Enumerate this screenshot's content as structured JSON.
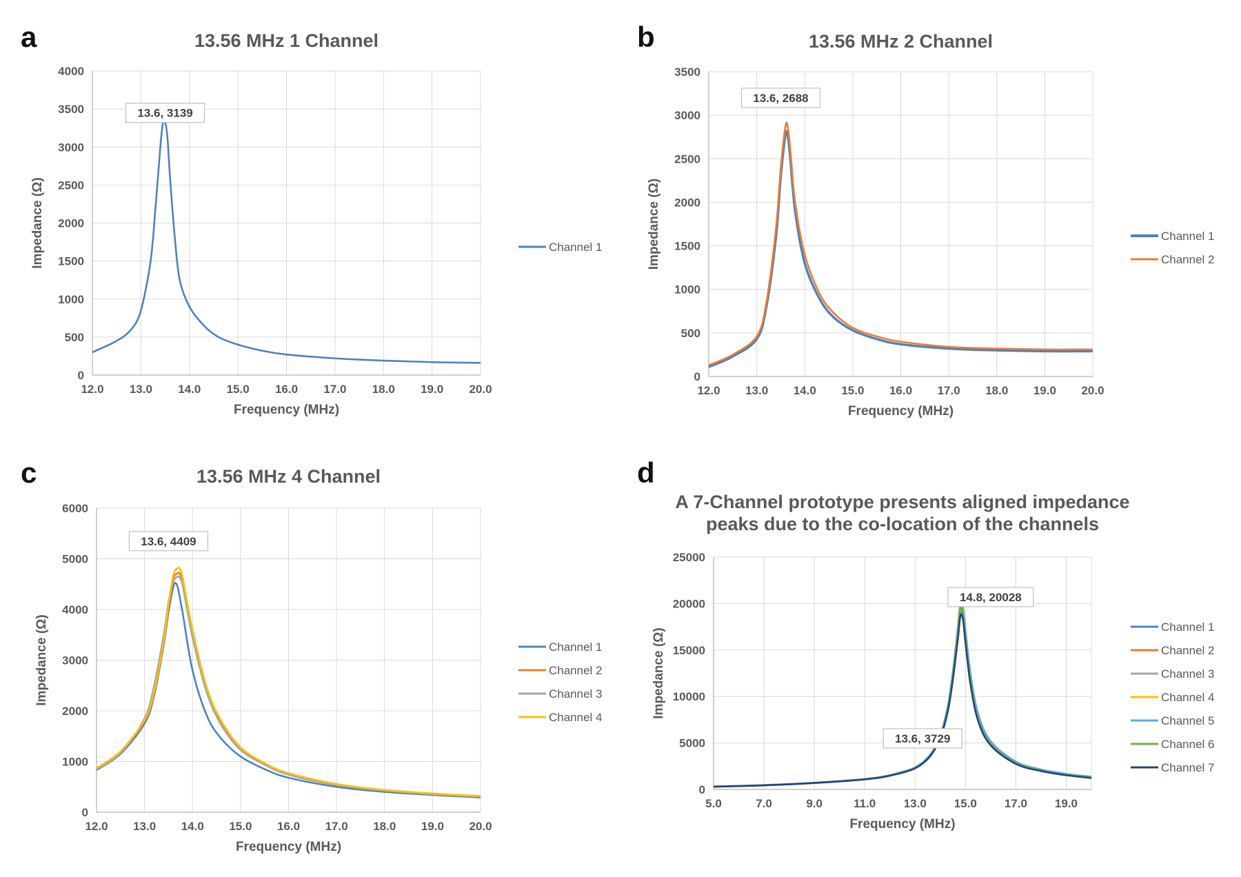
{
  "figure": {
    "panel_letters": [
      "a",
      "b",
      "c",
      "d"
    ]
  },
  "colors": {
    "channel_1": "#4f81bd",
    "channel_2": "#ed7d31",
    "channel_3": "#a5a5a5",
    "channel_4": "#ffc000",
    "channel_5": "#5fa8d3",
    "channel_6": "#70ad47",
    "channel_7": "#264478",
    "grid": "#d9d9d9",
    "text": "#595959"
  },
  "chart_data": [
    {
      "type": "line",
      "panel": "a",
      "title": [
        "13.56 MHz 1 Channel"
      ],
      "xlabel": "Frequency (MHz)",
      "ylabel": "Impedance (Ω)",
      "xlim": [
        12,
        20
      ],
      "ylim": [
        0,
        4000
      ],
      "xticks": [
        12,
        13,
        14,
        15,
        16,
        17,
        18,
        19,
        20
      ],
      "xtick_labels": [
        "12.0",
        "13.0",
        "14.0",
        "15.0",
        "16.0",
        "17.0",
        "18.0",
        "19.0",
        "20.0"
      ],
      "yticks": [
        0,
        500,
        1000,
        1500,
        2000,
        2500,
        3000,
        3500,
        4000
      ],
      "ytick_labels": [
        "0",
        "500",
        "1000",
        "1500",
        "2000",
        "2500",
        "3000",
        "3500",
        "4000"
      ],
      "grid": true,
      "legend_position": "right",
      "series": [
        {
          "name": "Channel 1",
          "color_key": "channel_1",
          "x": [
            12.0,
            12.5,
            12.8,
            13.0,
            13.2,
            13.3,
            13.4,
            13.45,
            13.5,
            13.55,
            13.6,
            13.7,
            13.8,
            14.0,
            14.3,
            14.6,
            15.0,
            15.5,
            16.0,
            17.0,
            18.0,
            19.0,
            20.0
          ],
          "y": [
            300,
            450,
            600,
            850,
            1500,
            2200,
            3000,
            3300,
            3330,
            3100,
            2600,
            1800,
            1250,
            900,
            650,
            500,
            400,
            320,
            270,
            220,
            190,
            170,
            160
          ]
        }
      ],
      "annotations": [
        {
          "text": "13.6, 3139",
          "x": 13.5,
          "y": 3450
        }
      ]
    },
    {
      "type": "line",
      "panel": "b",
      "title": [
        "13.56 MHz 2 Channel"
      ],
      "xlabel": "Frequency (MHz)",
      "ylabel": "Impedance (Ω)",
      "xlim": [
        12,
        20
      ],
      "ylim": [
        0,
        3500
      ],
      "xticks": [
        12,
        13,
        14,
        15,
        16,
        17,
        18,
        19,
        20
      ],
      "xtick_labels": [
        "12.0",
        "13.0",
        "14.0",
        "15.0",
        "16.0",
        "17.0",
        "18.0",
        "19.0",
        "20.0"
      ],
      "yticks": [
        0,
        500,
        1000,
        1500,
        2000,
        2500,
        3000,
        3500
      ],
      "ytick_labels": [
        "0",
        "500",
        "1000",
        "1500",
        "2000",
        "2500",
        "3000",
        "3500"
      ],
      "grid": true,
      "legend_position": "right",
      "series": [
        {
          "name": "Channel 1",
          "color_key": "channel_1",
          "x": [
            12.0,
            12.5,
            13.0,
            13.2,
            13.4,
            13.5,
            13.6,
            13.65,
            13.7,
            13.8,
            14.0,
            14.3,
            14.6,
            15.0,
            15.5,
            16.0,
            17.0,
            18.0,
            19.0,
            20.0
          ],
          "y": [
            110,
            230,
            430,
            800,
            1600,
            2300,
            2780,
            2750,
            2500,
            1900,
            1300,
            900,
            680,
            530,
            430,
            370,
            320,
            300,
            290,
            290
          ]
        },
        {
          "name": "Channel 2",
          "color_key": "channel_2",
          "x": [
            12.0,
            12.5,
            13.0,
            13.2,
            13.4,
            13.5,
            13.6,
            13.65,
            13.7,
            13.8,
            14.0,
            14.3,
            14.6,
            15.0,
            15.5,
            16.0,
            17.0,
            18.0,
            19.0,
            20.0
          ],
          "y": [
            130,
            250,
            460,
            850,
            1700,
            2400,
            2880,
            2850,
            2600,
            2000,
            1400,
            960,
            730,
            560,
            460,
            400,
            340,
            320,
            310,
            310
          ]
        }
      ],
      "annotations": [
        {
          "text": "13.6, 2688",
          "x": 13.5,
          "y": 3200
        }
      ]
    },
    {
      "type": "line",
      "panel": "c",
      "title": [
        "13.56 MHz 4 Channel"
      ],
      "xlabel": "Frequency (MHz)",
      "ylabel": "Impedance (Ω)",
      "xlim": [
        12,
        20
      ],
      "ylim": [
        0,
        6000
      ],
      "xticks": [
        12,
        13,
        14,
        15,
        16,
        17,
        18,
        19,
        20
      ],
      "xtick_labels": [
        "12.0",
        "13.0",
        "14.0",
        "15.0",
        "16.0",
        "17.0",
        "18.0",
        "19.0",
        "20.0"
      ],
      "yticks": [
        0,
        1000,
        2000,
        3000,
        4000,
        5000,
        6000
      ],
      "ytick_labels": [
        "0",
        "1000",
        "2000",
        "3000",
        "4000",
        "5000",
        "6000"
      ],
      "grid": true,
      "legend_position": "right",
      "series": [
        {
          "name": "Channel 1",
          "color_key": "channel_1",
          "x": [
            12.0,
            12.5,
            13.0,
            13.2,
            13.4,
            13.5,
            13.6,
            13.65,
            13.7,
            13.8,
            14.0,
            14.3,
            14.6,
            15.0,
            15.5,
            16.0,
            17.0,
            18.0,
            19.0,
            20.0
          ],
          "y": [
            830,
            1150,
            1750,
            2300,
            3300,
            3950,
            4450,
            4520,
            4400,
            3900,
            2800,
            1900,
            1450,
            1100,
            850,
            680,
            500,
            400,
            340,
            290
          ]
        },
        {
          "name": "Channel 2",
          "color_key": "channel_2",
          "x": [
            12.0,
            12.5,
            13.0,
            13.2,
            13.4,
            13.5,
            13.6,
            13.7,
            13.75,
            13.8,
            14.0,
            14.3,
            14.6,
            15.0,
            15.5,
            16.0,
            17.0,
            18.0,
            19.0,
            20.0
          ],
          "y": [
            850,
            1180,
            1800,
            2350,
            3350,
            4050,
            4600,
            4720,
            4680,
            4500,
            3500,
            2400,
            1750,
            1250,
            950,
            750,
            540,
            430,
            360,
            310
          ]
        },
        {
          "name": "Channel 3",
          "color_key": "channel_3",
          "x": [
            12.0,
            12.5,
            13.0,
            13.2,
            13.4,
            13.5,
            13.6,
            13.7,
            13.75,
            13.8,
            14.0,
            14.3,
            14.6,
            15.0,
            15.5,
            16.0,
            17.0,
            18.0,
            19.0,
            20.0
          ],
          "y": [
            840,
            1170,
            1850,
            2500,
            3500,
            4150,
            4550,
            4650,
            4600,
            4450,
            3450,
            2350,
            1720,
            1230,
            940,
            740,
            535,
            425,
            355,
            305
          ]
        },
        {
          "name": "Channel 4",
          "color_key": "channel_4",
          "x": [
            12.0,
            12.5,
            13.0,
            13.2,
            13.4,
            13.5,
            13.6,
            13.7,
            13.75,
            13.8,
            14.0,
            14.3,
            14.6,
            15.0,
            15.5,
            16.0,
            17.0,
            18.0,
            19.0,
            20.0
          ],
          "y": [
            870,
            1200,
            1820,
            2380,
            3380,
            4100,
            4680,
            4820,
            4780,
            4600,
            3600,
            2450,
            1800,
            1280,
            970,
            770,
            555,
            440,
            370,
            320
          ]
        }
      ],
      "annotations": [
        {
          "text": "13.6, 4409",
          "x": 13.5,
          "y": 5350
        }
      ]
    },
    {
      "type": "line",
      "panel": "d",
      "title": [
        "A 7-Channel prototype presents aligned impedance",
        "peaks due to the co-location of the channels"
      ],
      "xlabel": "Frequency (MHz)",
      "ylabel": "Impedance (Ω)",
      "xlim": [
        5,
        20
      ],
      "ylim": [
        0,
        25000
      ],
      "xticks": [
        5,
        7,
        9,
        11,
        13,
        15,
        17,
        19
      ],
      "xtick_labels": [
        "5.0",
        "7.0",
        "9.0",
        "11.0",
        "13.0",
        "15.0",
        "17.0",
        "19.0"
      ],
      "yticks": [
        0,
        5000,
        10000,
        15000,
        20000,
        25000
      ],
      "ytick_labels": [
        "0",
        "5000",
        "10000",
        "15000",
        "20000",
        "25000"
      ],
      "grid": true,
      "legend_position": "right",
      "series": [
        {
          "name": "Channel 1",
          "color_key": "channel_1",
          "x": [
            5,
            7,
            9,
            11,
            12,
            13,
            13.6,
            14,
            14.3,
            14.5,
            14.7,
            14.8,
            14.9,
            15.0,
            15.2,
            15.5,
            16,
            17,
            18,
            19,
            20
          ],
          "y": [
            300,
            450,
            700,
            1100,
            1500,
            2300,
            3600,
            5600,
            8500,
            12000,
            16500,
            19000,
            18500,
            16000,
            11500,
            7500,
            4800,
            2800,
            2000,
            1550,
            1250
          ]
        },
        {
          "name": "Channel 2",
          "color_key": "channel_2",
          "x": [
            5,
            7,
            9,
            11,
            12,
            13,
            13.6,
            14,
            14.3,
            14.5,
            14.7,
            14.8,
            14.9,
            15.0,
            15.2,
            15.5,
            16,
            17,
            18,
            19,
            20
          ],
          "y": [
            310,
            460,
            720,
            1120,
            1530,
            2350,
            3700,
            5800,
            8900,
            12600,
            17500,
            20050,
            19500,
            16800,
            12000,
            7800,
            4950,
            2900,
            2050,
            1600,
            1300
          ]
        },
        {
          "name": "Channel 3",
          "color_key": "channel_3",
          "x": [
            5,
            7,
            9,
            11,
            12,
            13,
            13.6,
            14,
            14.3,
            14.5,
            14.7,
            14.8,
            14.9,
            15.0,
            15.2,
            15.5,
            16,
            17,
            18,
            19,
            20
          ],
          "y": [
            305,
            455,
            710,
            1110,
            1510,
            2320,
            3650,
            5700,
            8700,
            12300,
            17000,
            19500,
            19000,
            16400,
            11800,
            7700,
            4900,
            2850,
            2030,
            1580,
            1280
          ]
        },
        {
          "name": "Channel 4",
          "color_key": "channel_4",
          "x": [
            5,
            7,
            9,
            11,
            12,
            13,
            13.6,
            14,
            14.3,
            14.5,
            14.7,
            14.8,
            14.9,
            15.0,
            15.2,
            15.5,
            16,
            17,
            18,
            19,
            20
          ],
          "y": [
            300,
            450,
            705,
            1105,
            1505,
            2310,
            3620,
            5650,
            8600,
            12100,
            16800,
            19300,
            18800,
            16200,
            11700,
            7650,
            4870,
            2830,
            2020,
            1570,
            1270
          ]
        },
        {
          "name": "Channel 5",
          "color_key": "channel_5",
          "x": [
            5,
            7,
            9,
            11,
            12,
            13,
            13.6,
            14,
            14.3,
            14.5,
            14.7,
            14.8,
            14.9,
            15.0,
            15.2,
            15.5,
            16,
            17,
            18,
            19,
            20
          ],
          "y": [
            320,
            470,
            730,
            1130,
            1550,
            2380,
            3750,
            5900,
            9000,
            12700,
            17400,
            19800,
            19600,
            17200,
            12500,
            8200,
            5200,
            3000,
            2150,
            1680,
            1380
          ]
        },
        {
          "name": "Channel 6",
          "color_key": "channel_6",
          "x": [
            5,
            7,
            9,
            11,
            12,
            13,
            13.6,
            14,
            14.3,
            14.5,
            14.7,
            14.8,
            14.9,
            15.0,
            15.2,
            15.5,
            16,
            17,
            18,
            19,
            20
          ],
          "y": [
            300,
            450,
            700,
            1100,
            1500,
            2300,
            3620,
            5650,
            8600,
            12200,
            16900,
            19400,
            18900,
            16300,
            11700,
            7600,
            4850,
            2820,
            2010,
            1560,
            1260
          ]
        },
        {
          "name": "Channel 7",
          "color_key": "channel_7",
          "x": [
            5,
            7,
            9,
            11,
            12,
            13,
            13.6,
            14,
            14.3,
            14.5,
            14.7,
            14.8,
            14.9,
            15.0,
            15.2,
            15.5,
            16,
            17,
            18,
            19,
            20
          ],
          "y": [
            290,
            440,
            690,
            1080,
            1480,
            2270,
            3580,
            5550,
            8400,
            11800,
            16200,
            18700,
            18300,
            15800,
            11300,
            7400,
            4750,
            2750,
            1980,
            1530,
            1230
          ]
        }
      ],
      "annotations": [
        {
          "text": "14.8, 20028",
          "x": 16.0,
          "y": 20700
        },
        {
          "text": "13.6, 3729",
          "x": 13.3,
          "y": 5500
        }
      ]
    }
  ]
}
